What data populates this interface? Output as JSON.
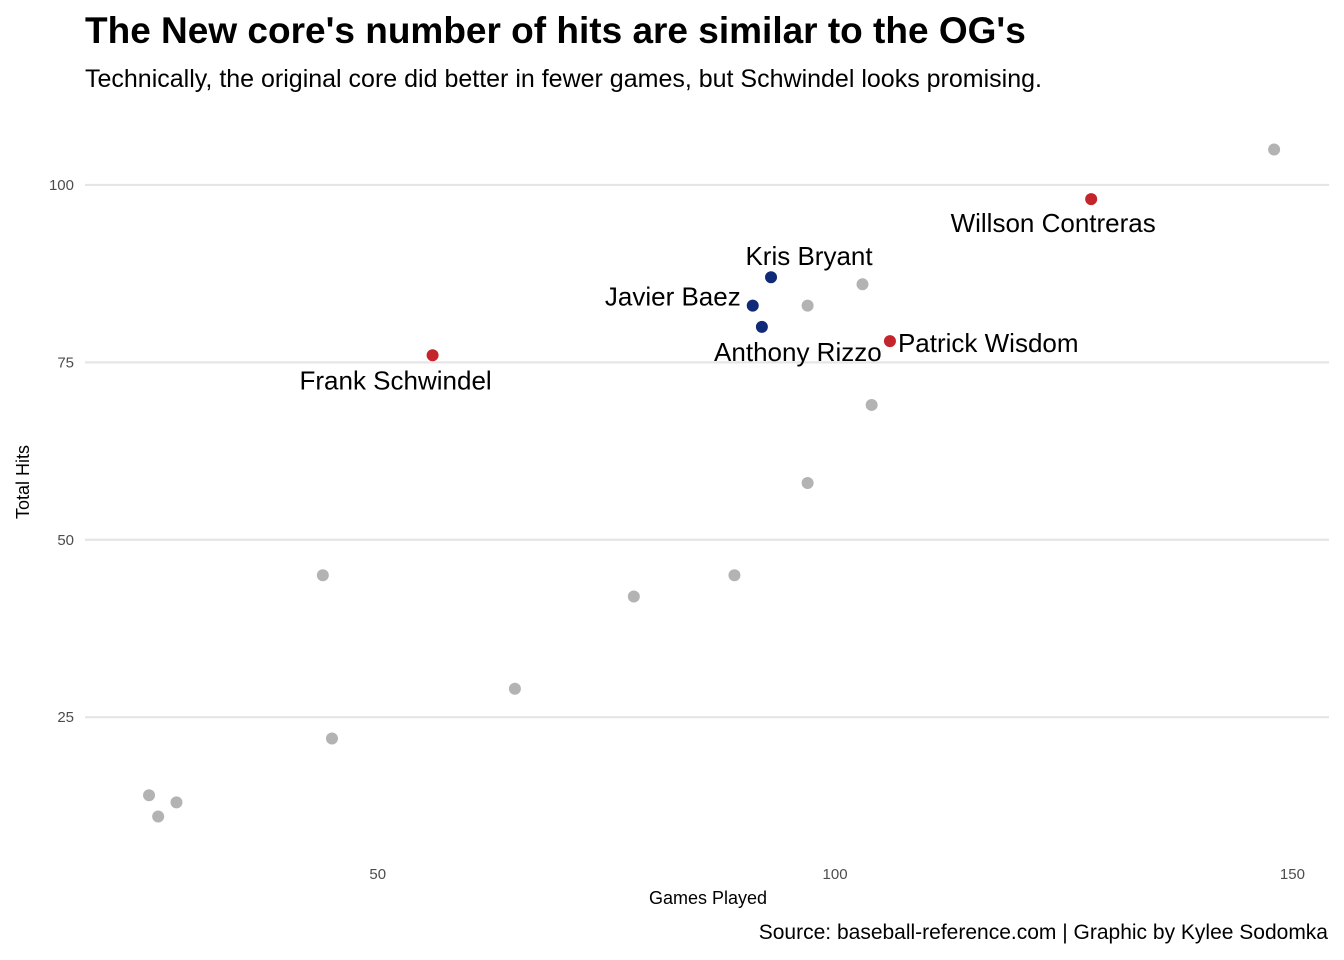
{
  "header": {
    "title": "The New core's number of hits are similar to the OG's",
    "subtitle": "Technically, the original core did better in fewer games, but Schwindel looks promising.",
    "caption": "Source: baseball-reference.com | Graphic by Kylee Sodomka"
  },
  "colors": {
    "other": "#b3b3b3",
    "og_core": "#0e2a78",
    "new_core": "#c4242b",
    "grid": "#e5e5e5"
  },
  "chart_data": {
    "type": "scatter",
    "title": "The New core's number of hits are similar to the OG's",
    "subtitle": "Technically, the original core did better in fewer games, but Schwindel looks promising.",
    "xlabel": "Games Played",
    "ylabel": "Total Hits",
    "xlim": [
      18,
      154
    ],
    "ylim": [
      6,
      110
    ],
    "x_ticks": [
      50,
      100,
      150
    ],
    "y_ticks": [
      25,
      50,
      75,
      100
    ],
    "grid": "horizontal major gridlines only",
    "legend": "none",
    "series": [
      {
        "group": "other",
        "points": [
          {
            "x": 25,
            "y": 14
          },
          {
            "x": 26,
            "y": 11
          },
          {
            "x": 28,
            "y": 13
          },
          {
            "x": 44,
            "y": 45
          },
          {
            "x": 45,
            "y": 22
          },
          {
            "x": 65,
            "y": 29
          },
          {
            "x": 78,
            "y": 42
          },
          {
            "x": 89,
            "y": 45
          },
          {
            "x": 97,
            "y": 58
          },
          {
            "x": 97,
            "y": 83
          },
          {
            "x": 103,
            "y": 86
          },
          {
            "x": 104,
            "y": 69
          },
          {
            "x": 148,
            "y": 105
          }
        ]
      },
      {
        "group": "og_core",
        "points": [
          {
            "x": 93,
            "y": 87,
            "label": "Kris Bryant"
          },
          {
            "x": 91,
            "y": 83,
            "label": "Javier Baez"
          },
          {
            "x": 92,
            "y": 80,
            "label": "Anthony Rizzo"
          }
        ]
      },
      {
        "group": "new_core",
        "points": [
          {
            "x": 128,
            "y": 98,
            "label": "Willson Contreras"
          },
          {
            "x": 106,
            "y": 78,
            "label": "Patrick Wisdom"
          },
          {
            "x": 56,
            "y": 76,
            "label": "Frank Schwindel"
          }
        ]
      }
    ]
  }
}
